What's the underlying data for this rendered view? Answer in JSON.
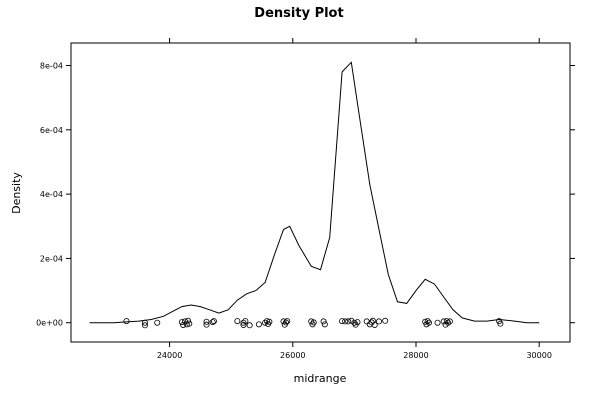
{
  "chart_data": {
    "type": "line",
    "title": "Density Plot",
    "xlabel": "midrange",
    "ylabel": "Density",
    "xlim": [
      22400,
      30500
    ],
    "ylim": [
      -6e-05,
      0.00087
    ],
    "x_ticks": [
      24000,
      26000,
      28000,
      30000
    ],
    "x_tick_labels": [
      "24000",
      "26000",
      "28000",
      "30000"
    ],
    "y_ticks": [
      0,
      0.0002,
      0.0004,
      0.0006,
      0.0008
    ],
    "y_tick_labels": [
      "0e+00",
      "2e-04",
      "4e-04",
      "6e-04",
      "8e-04"
    ],
    "grid": false,
    "legend": "none",
    "series": [
      {
        "x": [
          22700,
          23100,
          23500,
          23700,
          23900,
          24100,
          24200,
          24350,
          24500,
          24650,
          24800,
          24950,
          25100,
          25250,
          25400,
          25550,
          25700,
          25850,
          25950,
          26100,
          26300,
          26450,
          26600,
          26800,
          26950,
          27100,
          27250,
          27400,
          27550,
          27700,
          27850,
          28000,
          28150,
          28300,
          28450,
          28600,
          28750,
          28950,
          29150,
          29350,
          29600,
          29800,
          30000
        ],
        "y": [
          0,
          0,
          5e-06,
          1e-05,
          2e-05,
          4e-05,
          5e-05,
          5.5e-05,
          5e-05,
          4e-05,
          3e-05,
          4e-05,
          7e-05,
          9e-05,
          0.0001,
          0.000125,
          0.00021,
          0.00029,
          0.0003,
          0.00024,
          0.000175,
          0.000165,
          0.000265,
          0.00078,
          0.00081,
          0.00062,
          0.00043,
          0.00029,
          0.00015,
          6.5e-05,
          6e-05,
          0.0001,
          0.000135,
          0.00012,
          8e-05,
          4e-05,
          1.5e-05,
          5e-06,
          5e-06,
          1e-05,
          5e-06,
          0,
          0
        ]
      }
    ],
    "points": [
      {
        "x": 23300,
        "y": 5e-06
      },
      {
        "x": 23600,
        "y": 0
      },
      {
        "x": 23600,
        "y": -8e-06
      },
      {
        "x": 23800,
        "y": 0
      },
      {
        "x": 24200,
        "y": 2e-06
      },
      {
        "x": 24220,
        "y": -7e-06
      },
      {
        "x": 24250,
        "y": 4e-06
      },
      {
        "x": 24280,
        "y": -5e-06
      },
      {
        "x": 24300,
        "y": 6e-06
      },
      {
        "x": 24320,
        "y": -3e-06
      },
      {
        "x": 24600,
        "y": 3e-06
      },
      {
        "x": 24600,
        "y": -6e-06
      },
      {
        "x": 24700,
        "y": 2e-06
      },
      {
        "x": 24720,
        "y": 5e-06
      },
      {
        "x": 25100,
        "y": 5e-06
      },
      {
        "x": 25200,
        "y": 0
      },
      {
        "x": 25200,
        "y": -7e-06
      },
      {
        "x": 25230,
        "y": 5e-06
      },
      {
        "x": 25300,
        "y": -8e-06
      },
      {
        "x": 25450,
        "y": -5e-06
      },
      {
        "x": 25550,
        "y": 0
      },
      {
        "x": 25580,
        "y": 5e-06
      },
      {
        "x": 25600,
        "y": -4e-06
      },
      {
        "x": 25620,
        "y": 3e-06
      },
      {
        "x": 25850,
        "y": 4e-06
      },
      {
        "x": 25870,
        "y": -6e-06
      },
      {
        "x": 25890,
        "y": 1e-06
      },
      {
        "x": 25910,
        "y": 5e-06
      },
      {
        "x": 26300,
        "y": 4e-06
      },
      {
        "x": 26320,
        "y": -5e-06
      },
      {
        "x": 26340,
        "y": 1e-06
      },
      {
        "x": 26500,
        "y": 4e-06
      },
      {
        "x": 26520,
        "y": -5e-06
      },
      {
        "x": 26800,
        "y": 5e-06
      },
      {
        "x": 26850,
        "y": 4e-06
      },
      {
        "x": 26900,
        "y": 4e-06
      },
      {
        "x": 26950,
        "y": 6e-06
      },
      {
        "x": 27000,
        "y": 0
      },
      {
        "x": 27020,
        "y": -6e-06
      },
      {
        "x": 27050,
        "y": 2e-06
      },
      {
        "x": 27200,
        "y": 4e-06
      },
      {
        "x": 27250,
        "y": -5e-06
      },
      {
        "x": 27280,
        "y": 1e-06
      },
      {
        "x": 27300,
        "y": 6e-06
      },
      {
        "x": 27330,
        "y": -7e-06
      },
      {
        "x": 27400,
        "y": 4e-06
      },
      {
        "x": 27500,
        "y": 6e-06
      },
      {
        "x": 28150,
        "y": 3e-06
      },
      {
        "x": 28170,
        "y": -5e-06
      },
      {
        "x": 28190,
        "y": 5e-06
      },
      {
        "x": 28210,
        "y": 0
      },
      {
        "x": 28350,
        "y": 0
      },
      {
        "x": 28450,
        "y": 4e-06
      },
      {
        "x": 28480,
        "y": -6e-06
      },
      {
        "x": 28500,
        "y": 5e-06
      },
      {
        "x": 28520,
        "y": 0
      },
      {
        "x": 28550,
        "y": 4e-06
      },
      {
        "x": 29350,
        "y": 5e-06
      },
      {
        "x": 29370,
        "y": -3e-06
      }
    ]
  }
}
